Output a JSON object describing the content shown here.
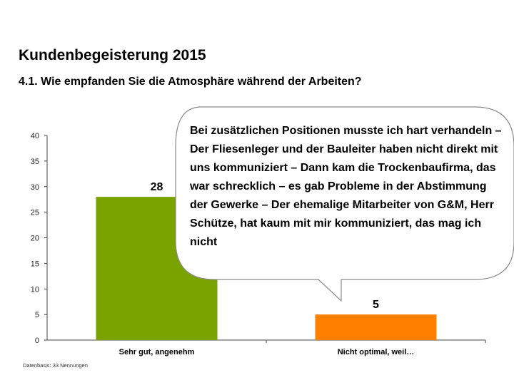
{
  "page": {
    "title": "Kundenbegeisterung 2015",
    "subtitle": "4.1. Wie empfanden Sie die Atmosphäre während der Arbeiten?",
    "footnote": "Datenbasis: 33 Nennungen"
  },
  "quote": {
    "text": "Bei zusätzlichen Positionen musste ich hart verhandeln – Der Fliesenleger und der Bauleiter haben nicht direkt mit uns kommuniziert – Dann kam die Trockenbaufirma, das war schrecklich – es gab Probleme in der Abstimmung der Gewerke – Der ehemalige Mitarbeiter von G&M, Herr Schütze, hat kaum mit mir kommuniziert, das mag ich nicht"
  },
  "chart_data": {
    "type": "bar",
    "title": "",
    "xlabel": "",
    "ylabel": "",
    "categories": [
      "Sehr gut, angenehm",
      "Nicht optimal, weil…"
    ],
    "values": [
      28,
      5
    ],
    "value_labels": [
      "28",
      "5"
    ],
    "colors": [
      "#7aa300",
      "#ff7f00"
    ],
    "ylim": [
      0,
      40
    ],
    "yticks": [
      0,
      5,
      10,
      15,
      20,
      25,
      30,
      35,
      40
    ],
    "grid": false,
    "legend": "none"
  }
}
